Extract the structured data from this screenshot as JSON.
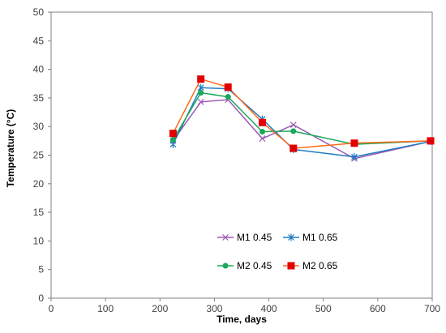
{
  "chart_data": {
    "type": "line",
    "title": "",
    "xlabel": "Time, days",
    "ylabel": "Temperature (°C)",
    "xlim": [
      0,
      700
    ],
    "ylim": [
      0,
      50
    ],
    "xticks": [
      0,
      100,
      200,
      300,
      400,
      500,
      600,
      700
    ],
    "yticks": [
      0,
      5,
      10,
      15,
      20,
      25,
      30,
      35,
      40,
      45,
      50
    ],
    "grid": false,
    "legend_position": "bottom-center",
    "series": [
      {
        "name": "M1 0.45",
        "color": "#9b59b6",
        "marker": "x",
        "x": [
          224,
          275,
          325,
          388,
          445,
          557,
          697
        ],
        "y": [
          27.5,
          34.3,
          34.7,
          27.9,
          30.3,
          24.4,
          27.4
        ]
      },
      {
        "name": "M1 0.65",
        "color": "#1f7bc1",
        "marker": "asterisk",
        "x": [
          224,
          275,
          325,
          388,
          445,
          557,
          697
        ],
        "y": [
          26.9,
          36.8,
          36.6,
          31.3,
          26.0,
          24.7,
          27.4
        ]
      },
      {
        "name": "M2 0.45",
        "color": "#1aa85a",
        "marker": "circle",
        "x": [
          224,
          275,
          325,
          388,
          445,
          557,
          697
        ],
        "y": [
          27.7,
          35.9,
          35.2,
          29.1,
          29.2,
          26.9,
          27.5
        ]
      },
      {
        "name": "M2 0.65",
        "color": "#ff6a1a",
        "marker_color": "#e30000",
        "marker": "square",
        "x": [
          224,
          275,
          325,
          388,
          445,
          557,
          697
        ],
        "y": [
          28.8,
          38.3,
          36.9,
          30.7,
          26.2,
          27.1,
          27.5
        ]
      }
    ]
  }
}
